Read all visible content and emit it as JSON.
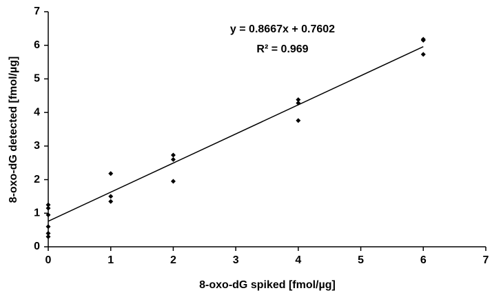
{
  "chart_data": {
    "type": "scatter",
    "xlabel": "8-oxo-dG spiked [fmol/µg]",
    "ylabel": "8-oxo-dG detected [fmol/µg]",
    "x": [
      0,
      0,
      0,
      0,
      0,
      0,
      1,
      1,
      1,
      2,
      2,
      2,
      4,
      4,
      4,
      6,
      6,
      6
    ],
    "values": [
      1.25,
      1.15,
      0.95,
      0.6,
      0.4,
      0.3,
      2.18,
      1.5,
      1.35,
      2.73,
      2.6,
      1.95,
      4.38,
      4.28,
      3.76,
      6.18,
      6.15,
      5.73
    ],
    "color": "#000000",
    "xlim": [
      0,
      7
    ],
    "xticks": [
      0,
      1,
      2,
      3,
      4,
      5,
      6,
      7
    ],
    "ylim": [
      0,
      7
    ],
    "yticks": [
      0,
      1,
      2,
      3,
      4,
      5,
      6,
      7
    ],
    "grid": false,
    "trendline": {
      "slope": 0.8667,
      "intercept": 0.7602,
      "from": 0,
      "to": 6,
      "label": "y = 0.8667x + 0.7602",
      "r2_label": "R² = 0.969"
    }
  }
}
